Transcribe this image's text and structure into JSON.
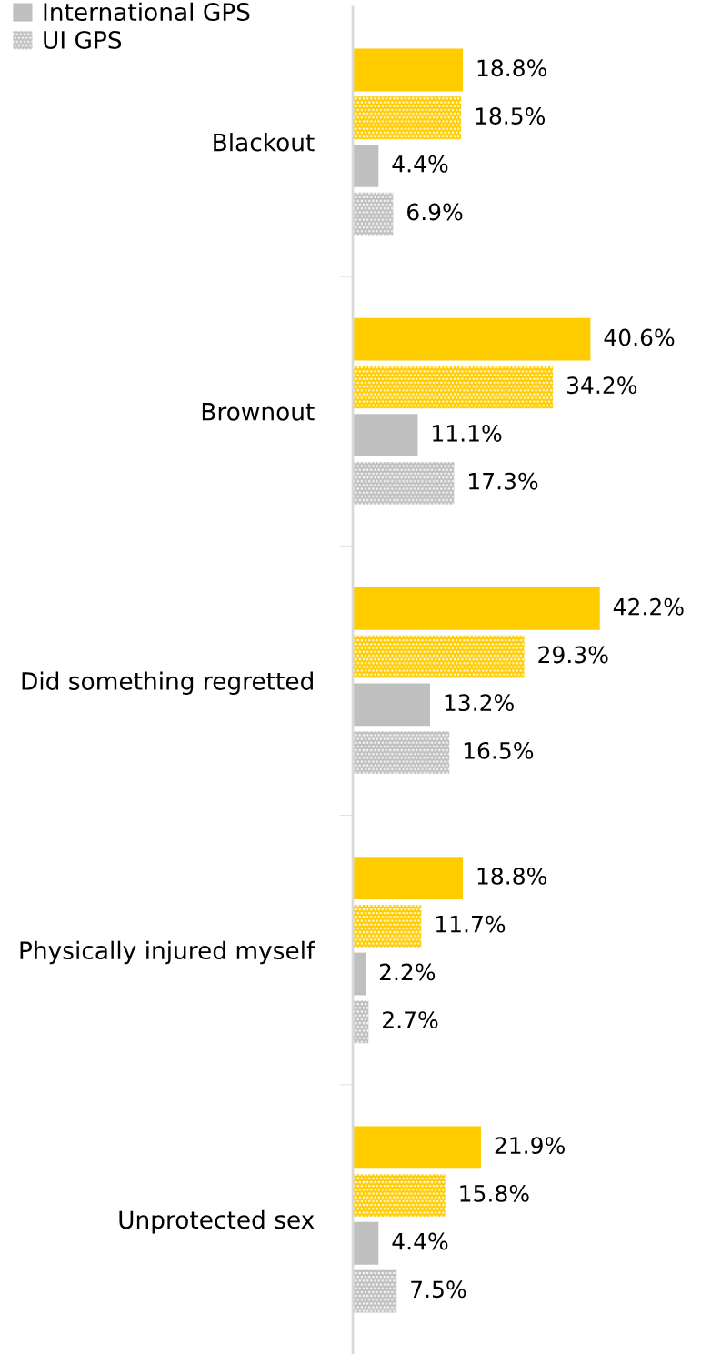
{
  "chart_data": {
    "type": "bar",
    "orientation": "horizontal",
    "categories": [
      "Blackout",
      "Brownout",
      "Did something regretted",
      "Physically injured myself",
      "Unprotected sex"
    ],
    "series": [
      {
        "color": "#ffcc00",
        "values": [
          18.8,
          40.6,
          42.2,
          18.8,
          21.9
        ],
        "value_labels": [
          "18.8%",
          "40.6%",
          "42.2%",
          "18.8%",
          "21.9%"
        ]
      },
      {
        "color": "#ffcc00",
        "values": [
          18.5,
          34.2,
          29.3,
          11.7,
          15.8
        ],
        "value_labels": [
          "18.5%",
          "34.2%",
          "29.3%",
          "11.7%",
          "15.8%"
        ]
      },
      {
        "name": "International GPS",
        "color": "#bfbfbf",
        "values": [
          4.4,
          11.1,
          13.2,
          2.2,
          4.4
        ],
        "value_labels": [
          "4.4%",
          "11.1%",
          "13.2%",
          "2.2%",
          "4.4%"
        ]
      },
      {
        "name": "UI GPS",
        "color": "#bfbfbf",
        "values": [
          6.9,
          17.3,
          16.5,
          2.7,
          7.5
        ],
        "value_labels": [
          "6.9%",
          "17.3%",
          "16.5%",
          "2.7%",
          "7.5%"
        ]
      }
    ],
    "legend": "top left"
  }
}
